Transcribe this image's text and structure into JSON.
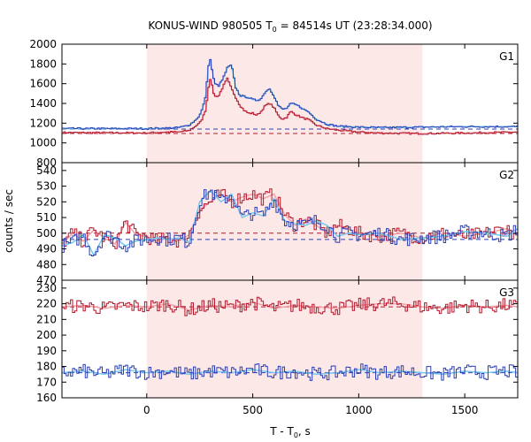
{
  "chart_data": {
    "type": "line",
    "title": "KONUS-WIND 980505 T",
    "title_sub": "0",
    "title_rest": " = 84514s UT (23:28:34.000)",
    "xlabel": "T - T",
    "xlabel_sub": "0",
    "xlabel_rest": ", s",
    "ylabel": "counts / sec",
    "xlim": [
      -400,
      1750
    ],
    "xticks": [
      0,
      500,
      1000,
      1500
    ],
    "shaded_interval": [
      0,
      1300
    ],
    "shade_color": "#fde8e8",
    "colors": {
      "red": "#b2182b",
      "blue": "#2a3fb5",
      "fit_red": "#f4a0a8",
      "fit_blue": "#78c8f0"
    },
    "grid": false,
    "panels": [
      {
        "name": "G1",
        "ylim": [
          800,
          2000
        ],
        "yticks": [
          800,
          1000,
          1200,
          1400,
          1600,
          1800,
          2000
        ],
        "background_levels": {
          "red": 1095,
          "blue": 1140
        },
        "series": [
          {
            "color": "red",
            "points": [
              [
                -400,
                1105
              ],
              [
                0,
                1100
              ],
              [
                100,
                1110
              ],
              [
                150,
                1110
              ],
              [
                200,
                1125
              ],
              [
                230,
                1170
              ],
              [
                250,
                1200
              ],
              [
                265,
                1260
              ],
              [
                280,
                1350
              ],
              [
                290,
                1550
              ],
              [
                300,
                1650
              ],
              [
                310,
                1560
              ],
              [
                320,
                1470
              ],
              [
                340,
                1480
              ],
              [
                360,
                1570
              ],
              [
                380,
                1650
              ],
              [
                400,
                1550
              ],
              [
                420,
                1460
              ],
              [
                440,
                1380
              ],
              [
                460,
                1330
              ],
              [
                480,
                1300
              ],
              [
                500,
                1300
              ],
              [
                520,
                1280
              ],
              [
                540,
                1320
              ],
              [
                560,
                1380
              ],
              [
                580,
                1400
              ],
              [
                600,
                1360
              ],
              [
                620,
                1280
              ],
              [
                640,
                1240
              ],
              [
                660,
                1260
              ],
              [
                680,
                1320
              ],
              [
                700,
                1290
              ],
              [
                720,
                1270
              ],
              [
                740,
                1250
              ],
              [
                760,
                1240
              ],
              [
                800,
                1180
              ],
              [
                850,
                1145
              ],
              [
                900,
                1130
              ],
              [
                1000,
                1110
              ],
              [
                1100,
                1100
              ],
              [
                1300,
                1095
              ],
              [
                1500,
                1100
              ],
              [
                1750,
                1110
              ]
            ]
          },
          {
            "color": "blue",
            "points": [
              [
                -400,
                1145
              ],
              [
                0,
                1145
              ],
              [
                100,
                1150
              ],
              [
                150,
                1155
              ],
              [
                200,
                1180
              ],
              [
                230,
                1230
              ],
              [
                250,
                1280
              ],
              [
                265,
                1360
              ],
              [
                280,
                1500
              ],
              [
                290,
                1780
              ],
              [
                300,
                1840
              ],
              [
                310,
                1720
              ],
              [
                320,
                1600
              ],
              [
                340,
                1580
              ],
              [
                360,
                1650
              ],
              [
                380,
                1760
              ],
              [
                400,
                1790
              ],
              [
                420,
                1560
              ],
              [
                440,
                1480
              ],
              [
                460,
                1470
              ],
              [
                480,
                1460
              ],
              [
                500,
                1440
              ],
              [
                520,
                1430
              ],
              [
                540,
                1450
              ],
              [
                560,
                1520
              ],
              [
                580,
                1550
              ],
              [
                600,
                1480
              ],
              [
                620,
                1380
              ],
              [
                640,
                1340
              ],
              [
                660,
                1350
              ],
              [
                680,
                1400
              ],
              [
                700,
                1390
              ],
              [
                720,
                1370
              ],
              [
                740,
                1340
              ],
              [
                760,
                1320
              ],
              [
                800,
                1240
              ],
              [
                850,
                1190
              ],
              [
                900,
                1170
              ],
              [
                1000,
                1160
              ],
              [
                1100,
                1155
              ],
              [
                1300,
                1160
              ],
              [
                1500,
                1165
              ],
              [
                1750,
                1165
              ]
            ]
          }
        ]
      },
      {
        "name": "G2",
        "ylim": [
          470,
          545
        ],
        "yticks": [
          470,
          480,
          490,
          500,
          510,
          520,
          530,
          540
        ],
        "background_levels": {
          "red": 500,
          "blue": 496
        },
        "series": [
          {
            "color": "red",
            "points": [
              [
                -400,
                493
              ],
              [
                -350,
                500
              ],
              [
                -300,
                495
              ],
              [
                -250,
                502
              ],
              [
                -200,
                497
              ],
              [
                -150,
                493
              ],
              [
                -100,
                507
              ],
              [
                -50,
                499
              ],
              [
                0,
                498
              ],
              [
                50,
                495
              ],
              [
                100,
                497
              ],
              [
                150,
                495
              ],
              [
                200,
                499
              ],
              [
                250,
                515
              ],
              [
                300,
                520
              ],
              [
                350,
                525
              ],
              [
                400,
                520
              ],
              [
                450,
                523
              ],
              [
                500,
                525
              ],
              [
                550,
                522
              ],
              [
                600,
                525
              ],
              [
                650,
                512
              ],
              [
                700,
                505
              ],
              [
                750,
                509
              ],
              [
                800,
                505
              ],
              [
                850,
                500
              ],
              [
                900,
                505
              ],
              [
                950,
                503
              ],
              [
                1000,
                500
              ],
              [
                1100,
                498
              ],
              [
                1200,
                500
              ],
              [
                1300,
                497
              ],
              [
                1400,
                500
              ],
              [
                1500,
                498
              ],
              [
                1600,
                500
              ],
              [
                1700,
                503
              ],
              [
                1750,
                498
              ]
            ]
          },
          {
            "color": "blue",
            "points": [
              [
                -400,
                492
              ],
              [
                -350,
                494
              ],
              [
                -300,
                499
              ],
              [
                -250,
                486
              ],
              [
                -200,
                499
              ],
              [
                -150,
                497
              ],
              [
                -100,
                492
              ],
              [
                -50,
                495
              ],
              [
                0,
                496
              ],
              [
                50,
                497
              ],
              [
                100,
                496
              ],
              [
                150,
                497
              ],
              [
                200,
                494
              ],
              [
                250,
                520
              ],
              [
                300,
                527
              ],
              [
                350,
                520
              ],
              [
                400,
                525
              ],
              [
                450,
                510
              ],
              [
                500,
                513
              ],
              [
                550,
                511
              ],
              [
                600,
                522
              ],
              [
                650,
                508
              ],
              [
                700,
                506
              ],
              [
                750,
                505
              ],
              [
                800,
                508
              ],
              [
                850,
                505
              ],
              [
                900,
                498
              ],
              [
                950,
                500
              ],
              [
                1000,
                499
              ],
              [
                1100,
                500
              ],
              [
                1200,
                496
              ],
              [
                1300,
                497
              ],
              [
                1400,
                498
              ],
              [
                1500,
                501
              ],
              [
                1600,
                500
              ],
              [
                1700,
                498
              ],
              [
                1750,
                503
              ]
            ]
          }
        ]
      },
      {
        "name": "G3",
        "ylim": [
          160,
          235
        ],
        "yticks": [
          160,
          170,
          180,
          190,
          200,
          210,
          220,
          230
        ],
        "background_levels": {
          "red": 218,
          "blue": 176
        },
        "series": [
          {
            "color": "red",
            "points": [
              [
                -400,
                218
              ],
              [
                -300,
                219
              ],
              [
                -200,
                217
              ],
              [
                -100,
                219
              ],
              [
                0,
                218
              ],
              [
                100,
                220
              ],
              [
                200,
                216
              ],
              [
                300,
                219
              ],
              [
                400,
                218
              ],
              [
                500,
                221
              ],
              [
                600,
                217
              ],
              [
                700,
                219
              ],
              [
                800,
                218
              ],
              [
                900,
                217
              ],
              [
                1000,
                219
              ],
              [
                1100,
                220
              ],
              [
                1200,
                220
              ],
              [
                1300,
                218
              ],
              [
                1400,
                217
              ],
              [
                1500,
                219
              ],
              [
                1600,
                218
              ],
              [
                1700,
                219
              ],
              [
                1750,
                218
              ]
            ]
          },
          {
            "color": "blue",
            "points": [
              [
                -400,
                176
              ],
              [
                -300,
                177
              ],
              [
                -200,
                175
              ],
              [
                -100,
                178
              ],
              [
                0,
                176
              ],
              [
                100,
                177
              ],
              [
                200,
                175
              ],
              [
                300,
                177
              ],
              [
                400,
                176
              ],
              [
                500,
                178
              ],
              [
                600,
                176
              ],
              [
                700,
                177
              ],
              [
                800,
                175
              ],
              [
                900,
                176
              ],
              [
                1000,
                178
              ],
              [
                1100,
                176
              ],
              [
                1200,
                177
              ],
              [
                1300,
                176
              ],
              [
                1400,
                175
              ],
              [
                1500,
                177
              ],
              [
                1600,
                176
              ],
              [
                1700,
                177
              ],
              [
                1750,
                176
              ]
            ]
          }
        ]
      }
    ]
  }
}
